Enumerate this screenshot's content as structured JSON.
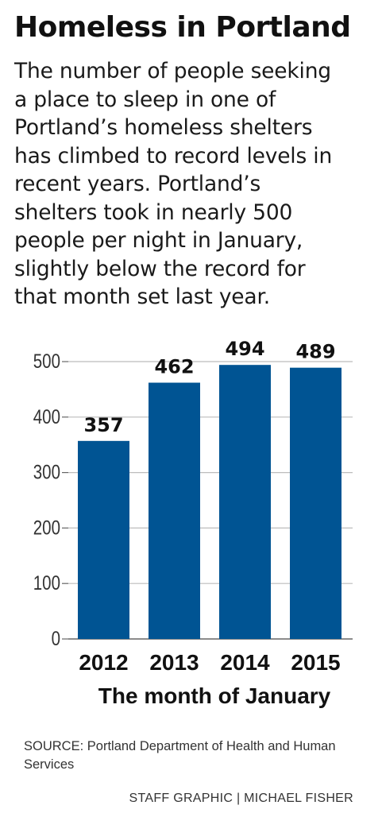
{
  "title": "Homeless in Portland",
  "subtitle_lines": [
    "The number of people seeking",
    "a place to sleep in one of",
    "Portland’s homeless shelters",
    "has climbed to record levels in",
    "recent years. Portland’s",
    "shelters took in nearly 500",
    "people per night in January,",
    "slightly below the record for",
    "that month set last year."
  ],
  "chart_data": {
    "type": "bar",
    "categories": [
      "2012",
      "2013",
      "2014",
      "2015"
    ],
    "values": [
      357,
      462,
      494,
      489
    ],
    "xlabel": "The month of January",
    "ylabel": "",
    "ylim": [
      0,
      500
    ],
    "yticks": [
      0,
      100,
      200,
      300,
      400,
      500
    ],
    "grid": true,
    "bar_color": "#005493",
    "grid_color": "#bcbcbc"
  },
  "source": {
    "label": "SOURCE:",
    "text": "Portland Department of Health and Human Services"
  },
  "credit": "STAFF GRAPHIC | MICHAEL FISHER"
}
